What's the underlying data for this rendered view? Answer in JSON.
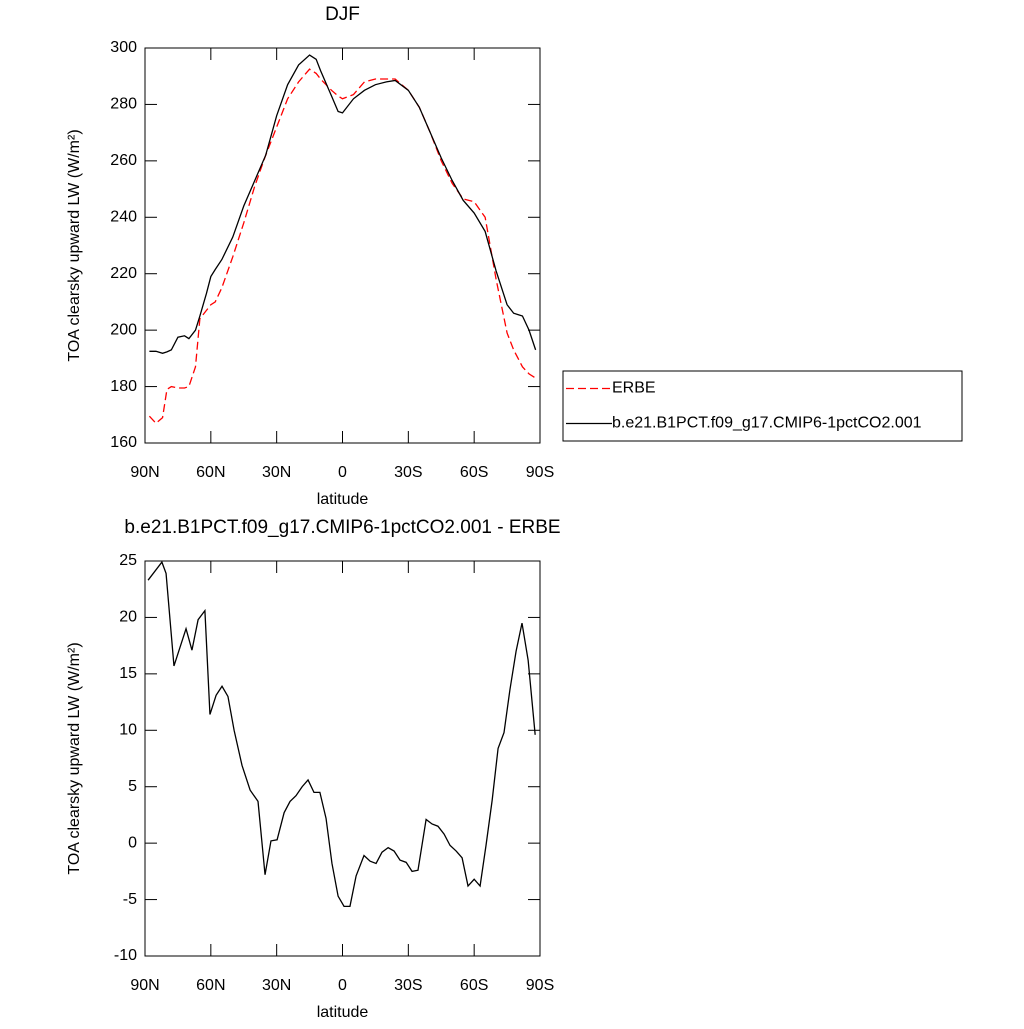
{
  "chart_data": [
    {
      "type": "line",
      "title": "DJF",
      "xlabel": "latitude",
      "ylabel": "TOA clearsky upward LW (W/m²)",
      "xlim": [
        90,
        -90
      ],
      "xticks": [
        {
          "value": 90,
          "label": "90N"
        },
        {
          "value": 60,
          "label": "60N"
        },
        {
          "value": 30,
          "label": "30N"
        },
        0,
        {
          "value": -30,
          "label": "30S"
        },
        {
          "value": -60,
          "label": "60S"
        },
        {
          "value": -90,
          "label": "90S"
        }
      ],
      "ylim": [
        160,
        300
      ],
      "yticks": [
        160,
        180,
        200,
        220,
        240,
        260,
        280,
        300
      ],
      "legend": "right",
      "x": [
        88,
        85,
        82,
        80,
        78,
        75,
        72,
        70,
        67,
        65,
        62,
        60,
        58,
        55,
        50,
        45,
        40,
        35,
        30,
        25,
        20,
        15,
        12,
        10,
        5,
        2,
        0,
        -5,
        -10,
        -15,
        -20,
        -24,
        -30,
        -35,
        -40,
        -45,
        -50,
        -55,
        -60,
        -65,
        -70,
        -75,
        -78,
        -80,
        -82,
        -85,
        -88
      ],
      "series": [
        {
          "name": "ERBE",
          "color": "#ff0000",
          "dashed": true,
          "values": [
            169.5,
            167,
            169,
            179,
            180,
            179.5,
            179.5,
            180,
            187,
            204,
            207,
            209,
            210,
            215,
            226,
            238,
            251,
            262,
            272,
            282,
            288,
            292.5,
            291,
            289,
            285,
            283,
            282,
            283.5,
            288,
            289,
            289,
            289,
            285,
            279,
            270,
            260,
            252,
            246.5,
            245.5,
            240,
            218,
            199,
            193,
            190,
            187,
            184.5,
            183
          ]
        },
        {
          "name": "b.e21.B1PCT.f09_g17.CMIP6-1pctCO2.001",
          "color": "#000000",
          "dashed": false,
          "values": [
            192.5,
            192.5,
            191.8,
            192.3,
            193,
            197.5,
            198,
            197,
            200,
            205,
            213,
            219,
            221.5,
            225,
            233,
            244,
            253,
            262,
            276,
            287,
            294,
            297.5,
            296,
            292,
            283,
            277.5,
            277,
            282,
            285,
            287,
            288,
            288.5,
            285,
            279,
            270,
            261,
            253,
            246,
            241.5,
            235,
            221,
            209,
            206,
            205.5,
            205,
            200,
            193
          ]
        }
      ]
    },
    {
      "type": "line",
      "title": "b.e21.B1PCT.f09_g17.CMIP6-1pctCO2.001 - ERBE",
      "xlabel": "latitude",
      "ylabel": "TOA clearsky upward LW (W/m²)",
      "xlim": [
        90,
        -90
      ],
      "xticks": [
        {
          "value": 90,
          "label": "90N"
        },
        {
          "value": 60,
          "label": "60N"
        },
        {
          "value": 30,
          "label": "30N"
        },
        0,
        {
          "value": -30,
          "label": "30S"
        },
        {
          "value": -60,
          "label": "60S"
        },
        {
          "value": -90,
          "label": "90S"
        }
      ],
      "ylim": [
        -10,
        25
      ],
      "yticks": [
        -10,
        -5,
        0,
        5,
        10,
        15,
        20,
        25
      ],
      "x": [
        88.6,
        82.3,
        80.4,
        76.8,
        71.3,
        68.6,
        65.8,
        62.7,
        60.4,
        57.6,
        54.9,
        52.2,
        49.4,
        45.8,
        42.1,
        38.5,
        35.3,
        32.6,
        29.8,
        26.6,
        23.9,
        21.2,
        18.4,
        15.7,
        13,
        10.3,
        7.5,
        4.8,
        2,
        -0.7,
        -3.4,
        -6.2,
        -9.8,
        -12.6,
        -15.3,
        -18,
        -20.8,
        -23.5,
        -26.2,
        -29,
        -31.7,
        -34.4,
        -38.1,
        -40.8,
        -43.5,
        -46.3,
        -49,
        -51.8,
        -54.5,
        -57.2,
        -60,
        -62.7,
        -65.4,
        -68.2,
        -70.9,
        -73.6,
        -76.3,
        -79.1,
        -81.8,
        -84.6,
        -87.8
      ],
      "series": [
        {
          "color": "#000000",
          "dashed": false,
          "values": [
            23.3,
            24.9,
            23.9,
            15.7,
            19,
            17.1,
            19.8,
            20.6,
            11.4,
            13.1,
            13.9,
            13,
            10,
            6.9,
            4.7,
            3.7,
            -2.8,
            0.2,
            0.3,
            2.7,
            3.7,
            4.2,
            5,
            5.6,
            4.5,
            4.5,
            2.2,
            -1.8,
            -4.7,
            -5.6,
            -5.6,
            -2.9,
            -1.1,
            -1.6,
            -1.8,
            -0.8,
            -0.4,
            -0.7,
            -1.5,
            -1.7,
            -2.5,
            -2.4,
            2.1,
            1.7,
            1.5,
            0.8,
            -0.2,
            -0.7,
            -1.3,
            -3.8,
            -3.2,
            -3.8,
            -0.2,
            3.8,
            8.4,
            9.8,
            13.6,
            17,
            19.5,
            16.2,
            9.6
          ]
        }
      ]
    }
  ]
}
